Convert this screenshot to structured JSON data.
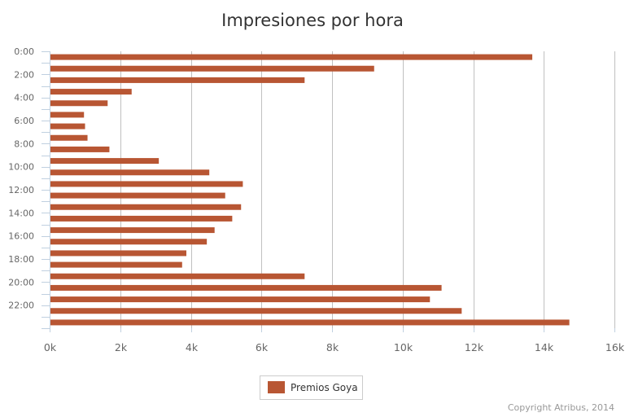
{
  "chart_data": {
    "type": "bar",
    "orientation": "horizontal",
    "title": "Impresiones por hora",
    "xlabel": "",
    "ylabel": "",
    "categories": [
      "0:00",
      "1:00",
      "2:00",
      "3:00",
      "4:00",
      "5:00",
      "6:00",
      "7:00",
      "8:00",
      "9:00",
      "10:00",
      "11:00",
      "12:00",
      "13:00",
      "14:00",
      "15:00",
      "16:00",
      "17:00",
      "18:00",
      "19:00",
      "20:00",
      "21:00",
      "22:00",
      "23:00"
    ],
    "category_tick_labels": [
      "0:00",
      "",
      "2:00",
      "",
      "4:00",
      "",
      "6:00",
      "",
      "8:00",
      "",
      "10:00",
      "",
      "12:00",
      "",
      "14:00",
      "",
      "16:00",
      "",
      "18:00",
      "",
      "20:00",
      "",
      "22:00",
      ""
    ],
    "series": [
      {
        "name": "Premios Goya",
        "values": [
          13650,
          9170,
          7200,
          2300,
          1620,
          950,
          980,
          1050,
          1670,
          3070,
          4500,
          5450,
          4950,
          5400,
          5150,
          4650,
          4430,
          3850,
          3730,
          7200,
          11080,
          10750,
          11650,
          14700
        ]
      }
    ],
    "value_axis": {
      "min": 0,
      "max": 16000,
      "ticks": [
        0,
        2000,
        4000,
        6000,
        8000,
        10000,
        12000,
        14000,
        16000
      ],
      "tick_labels": [
        "0k",
        "2k",
        "4k",
        "6k",
        "8k",
        "10k",
        "12k",
        "14k",
        "16k"
      ]
    },
    "grid": true,
    "legend_position": "bottom-center",
    "colors": {
      "bar": "#b85633",
      "grid": "#c0c0c0",
      "axis": "#c0d0e0",
      "text": "#666666",
      "title": "#333333"
    }
  },
  "credits": "Copyright Atribus, 2014"
}
